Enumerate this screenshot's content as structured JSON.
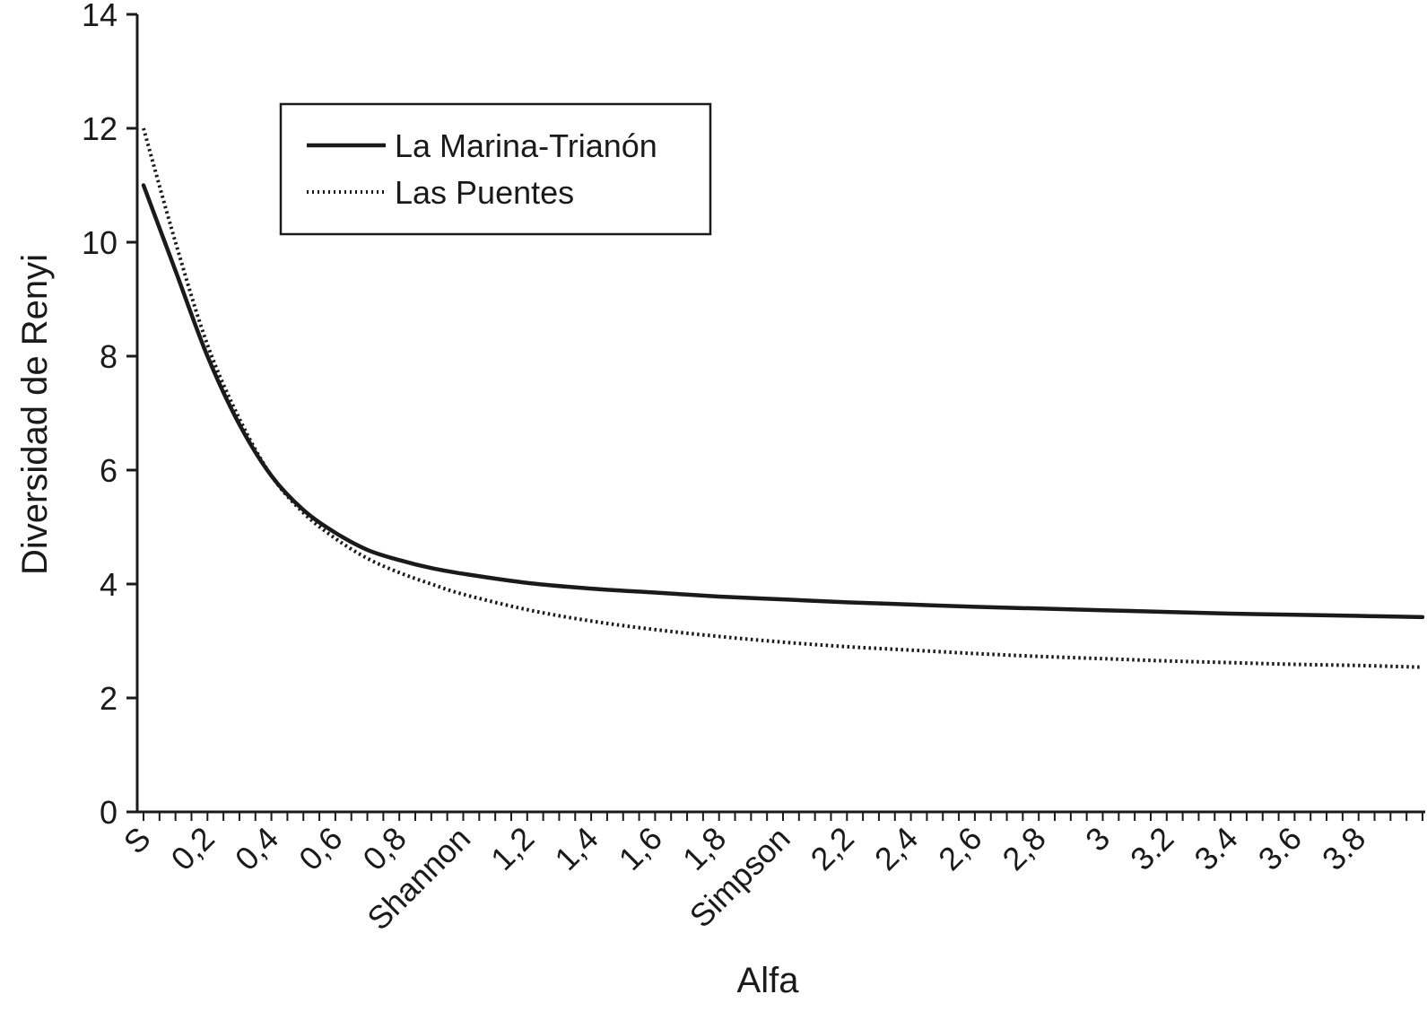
{
  "chart_data": {
    "type": "line",
    "title": "",
    "xlabel": "Alfa",
    "ylabel": "Diversidad de Renyi",
    "ylim": [
      0,
      14
    ],
    "xlim": [
      0,
      4
    ],
    "y_ticks": [
      0,
      2,
      4,
      6,
      8,
      10,
      12,
      14
    ],
    "x_tick_labels": [
      {
        "value": 0,
        "label": "S"
      },
      {
        "value": 0.2,
        "label": "0,2"
      },
      {
        "value": 0.4,
        "label": "0,4"
      },
      {
        "value": 0.6,
        "label": "0,6"
      },
      {
        "value": 0.8,
        "label": "0,8"
      },
      {
        "value": 1.0,
        "label": "Shannon"
      },
      {
        "value": 1.2,
        "label": "1,2"
      },
      {
        "value": 1.4,
        "label": "1,4"
      },
      {
        "value": 1.6,
        "label": "1,6"
      },
      {
        "value": 1.8,
        "label": "1,8"
      },
      {
        "value": 2.0,
        "label": "Simpson"
      },
      {
        "value": 2.2,
        "label": "2,2"
      },
      {
        "value": 2.4,
        "label": "2,4"
      },
      {
        "value": 2.6,
        "label": "2,6"
      },
      {
        "value": 2.8,
        "label": "2,8"
      },
      {
        "value": 3.0,
        "label": "3"
      },
      {
        "value": 3.2,
        "label": "3.2"
      },
      {
        "value": 3.4,
        "label": "3.4"
      },
      {
        "value": 3.6,
        "label": "3.6"
      },
      {
        "value": 3.8,
        "label": "3.8"
      }
    ],
    "legend": "top-left",
    "grid": false,
    "x": [
      0,
      0.1,
      0.2,
      0.3,
      0.4,
      0.5,
      0.6,
      0.7,
      0.8,
      0.9,
      1.0,
      1.2,
      1.4,
      1.6,
      1.8,
      2.0,
      2.2,
      2.4,
      2.6,
      2.8,
      3.0,
      3.2,
      3.4,
      3.6,
      3.8,
      4.0
    ],
    "series": [
      {
        "name": "La Marina-Trianón",
        "style": "solid",
        "color": "#1a1a1a",
        "values": [
          11.0,
          9.5,
          8.0,
          6.8,
          5.9,
          5.3,
          4.9,
          4.6,
          4.42,
          4.28,
          4.18,
          4.02,
          3.92,
          3.85,
          3.78,
          3.73,
          3.68,
          3.64,
          3.6,
          3.57,
          3.54,
          3.51,
          3.48,
          3.46,
          3.44,
          3.42
        ]
      },
      {
        "name": "Las Puentes",
        "style": "dotted",
        "color": "#1a1a1a",
        "values": [
          12.0,
          10.0,
          8.2,
          6.9,
          5.9,
          5.25,
          4.8,
          4.45,
          4.2,
          4.0,
          3.82,
          3.55,
          3.35,
          3.2,
          3.08,
          2.98,
          2.9,
          2.84,
          2.78,
          2.73,
          2.69,
          2.65,
          2.62,
          2.59,
          2.57,
          2.54
        ]
      }
    ]
  }
}
